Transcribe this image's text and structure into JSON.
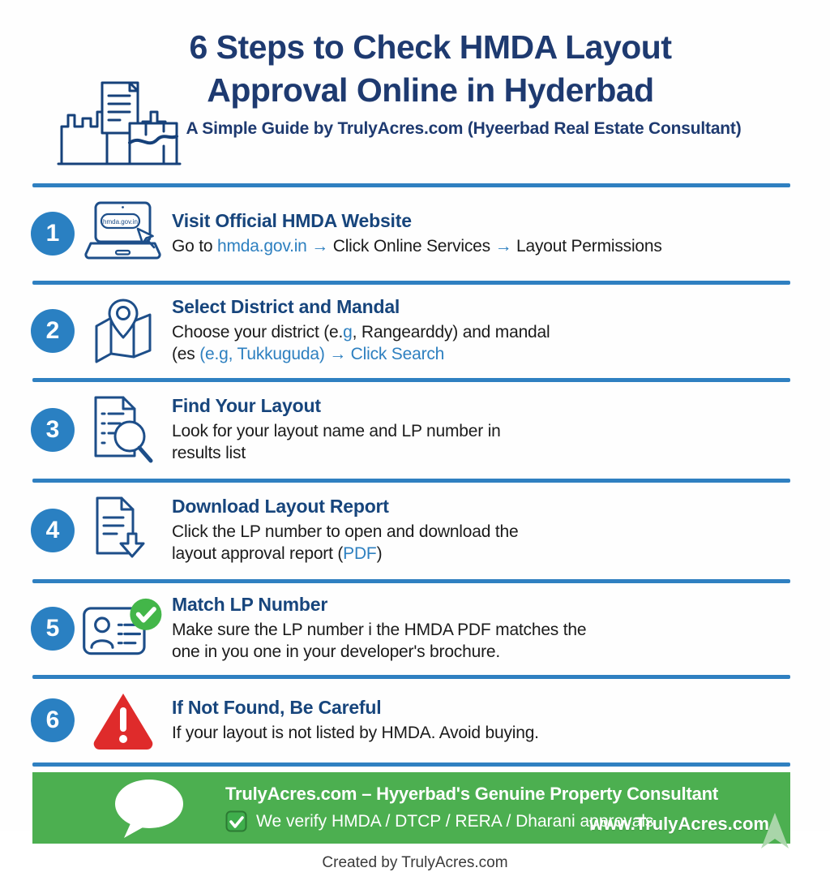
{
  "colors": {
    "navy": "#1e3a70",
    "step_blue": "#2a80c2",
    "link_blue": "#2e80c0",
    "divider_blue": "#2f80c1",
    "footer_green": "#4caf50",
    "warning_red": "#df2b2b",
    "check_green": "#43b649"
  },
  "header": {
    "title_line1": "6 Steps to Check HMDA Layout",
    "title_line2": "Approval Online in Hyderbad",
    "subtitle": "A Simple Guide by TrulyAcres.com (Hyeerbad Real Estate Consultant)"
  },
  "icons": {
    "laptop_screen_text": "hmda.gov.in"
  },
  "steps": [
    {
      "number": "1",
      "icon": "laptop",
      "title": "Visit Official HMDA Website",
      "lines": [
        [
          {
            "t": "Go to "
          },
          {
            "t": "hmda.gov.in",
            "blue": true
          },
          {
            "t": " → ",
            "blue": true
          },
          {
            "t": "Click Online Services"
          },
          {
            "t": " → ",
            "blue": true
          },
          {
            "t": "Layout Permissions"
          }
        ]
      ]
    },
    {
      "number": "2",
      "icon": "map-pin",
      "title": "Select District and Mandal",
      "lines": [
        [
          {
            "t": "Choose your district (e."
          },
          {
            "t": "g",
            "blue": true
          },
          {
            "t": ", Rangearddy) and mandal"
          }
        ],
        [
          {
            "t": "(es "
          },
          {
            "t": "(e.g, Tukkuguda) → Click Search",
            "blue": true
          }
        ]
      ]
    },
    {
      "number": "3",
      "icon": "document-search",
      "title": "Find Your Layout",
      "lines": [
        [
          {
            "t": "Look for your layout name and LP number in"
          }
        ],
        [
          {
            "t": "results list"
          }
        ]
      ]
    },
    {
      "number": "4",
      "icon": "document-download",
      "title": "Download Layout Report",
      "lines": [
        [
          {
            "t": "Click the LP number to open and download the"
          }
        ],
        [
          {
            "t": "layout approval report ("
          },
          {
            "t": "PDF",
            "blue": true
          },
          {
            "t": ")"
          }
        ]
      ]
    },
    {
      "number": "5",
      "icon": "id-card-check",
      "title": "Match LP Number",
      "lines": [
        [
          {
            "t": "Make sure the LP number i the HMDA PDF matches the"
          }
        ],
        [
          {
            "t": "one  in you one in your developer's brochure."
          }
        ]
      ]
    },
    {
      "number": "6",
      "icon": "warning-triangle",
      "title": "If Not Found, Be Careful",
      "lines": [
        [
          {
            "t": "If your layout is not listed by HMDA. Avoid buying."
          }
        ]
      ]
    }
  ],
  "footer": {
    "title": "TrulyAcres.com – Hyyerbad's Genuine Property Consultant",
    "verify_line": "We verify HMDA / DTCP / RERA / Dharani approvals",
    "url": "www.TrulyAcres.com",
    "credit": "Created by TrulyAcres.com"
  }
}
